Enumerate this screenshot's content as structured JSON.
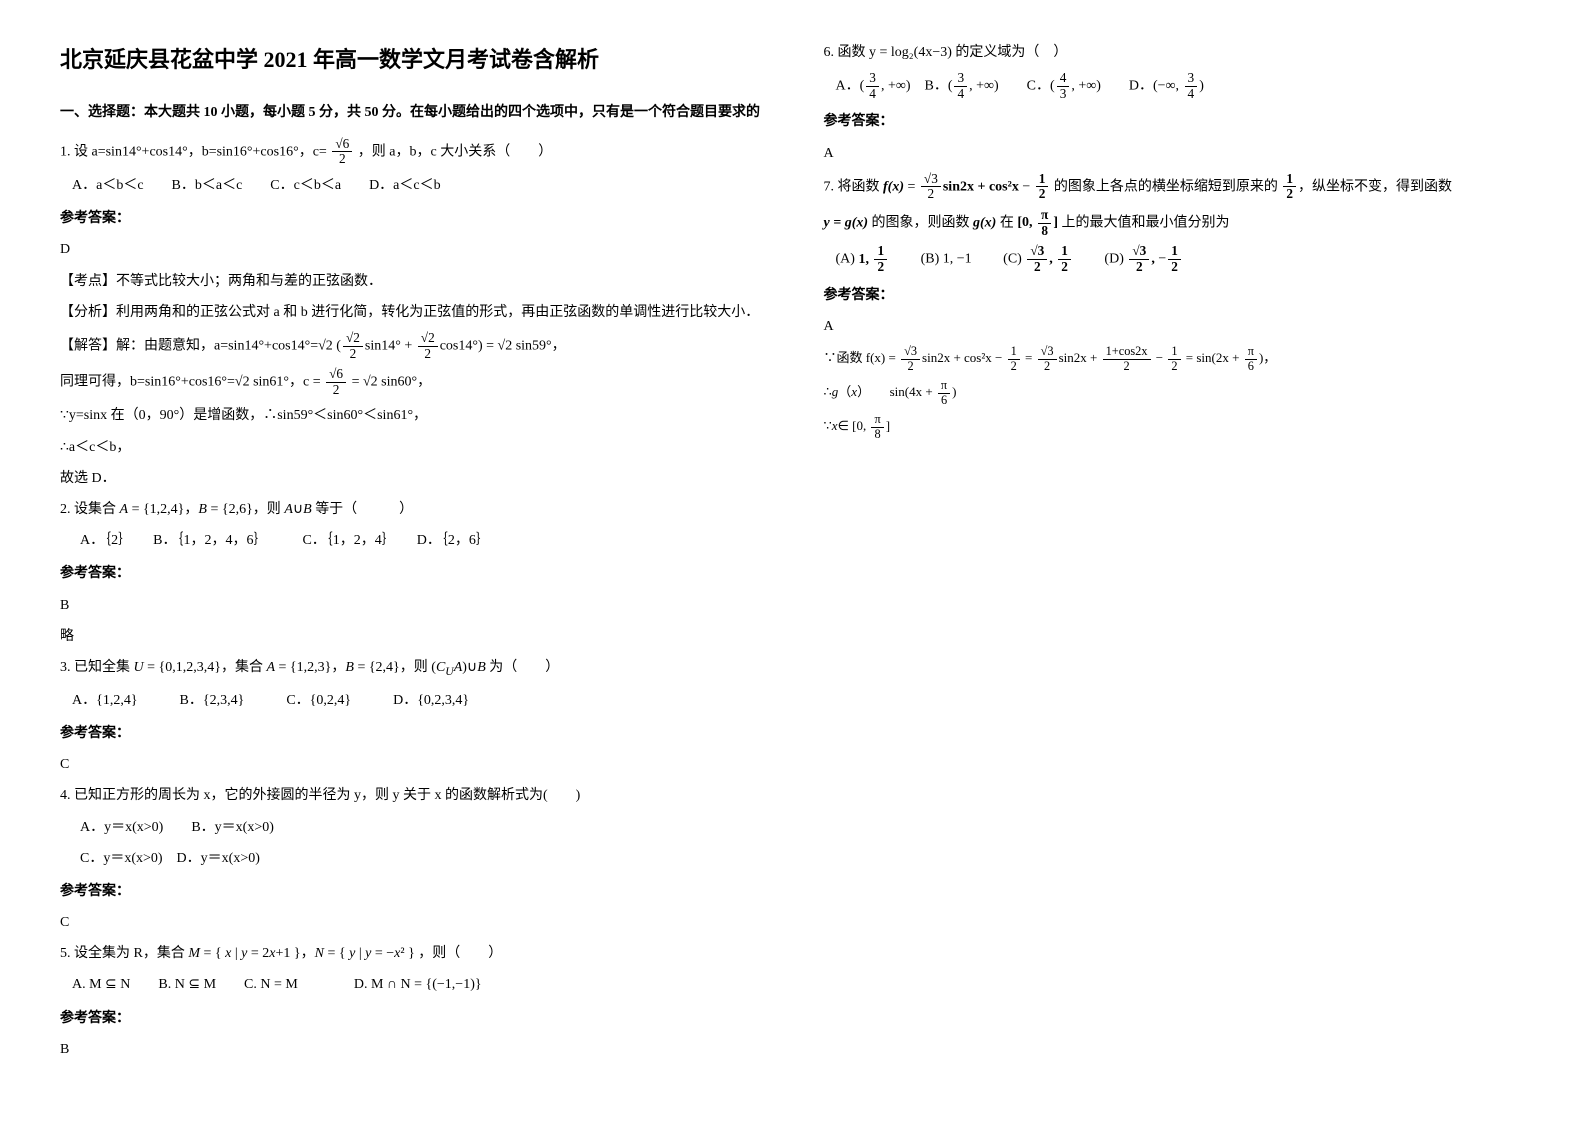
{
  "title": "北京延庆县花盆中学 2021 年高一数学文月考试卷含解析",
  "section1_header": "一、选择题：本大题共 10 小题，每小题 5 分，共 50 分。在每小题给出的四个选项中，只有是一个符合题目要求的",
  "q1": {
    "stem_prefix": "1. 设 a=sin14°+cos14°，b=sin16°+cos16°，c=",
    "stem_suffix": "，则 a，b，c 大小关系（　　）",
    "opts": "A．a＜b＜c　　B．b＜a＜c　　C．c＜b＜a　　D．a＜c＜b",
    "ans_label": "参考答案：",
    "ans": "D",
    "kaodian": "【考点】不等式比较大小；两角和与差的正弦函数．",
    "fenxi": "【分析】利用两角和的正弦公式对 a 和 b 进行化简，转化为正弦值的形式，再由正弦函数的单调性进行比较大小．",
    "jieda_prefix": "【解答】解：由题意知，a=sin14°+cos14°=",
    "jieda_line2_prefix": "同理可得，b=sin16°+cos16°=",
    "jieda_line3": "∵y=sinx 在（0，90°）是增函数，∴sin59°＜sin60°＜sin61°，",
    "jieda_line4": "∴a＜c＜b，",
    "jieda_line5": "故选 D．"
  },
  "q2": {
    "stem": "2. 设集合 A = {1,2,4}，B = {2,6}，则 A∪B 等于（　　　）",
    "opts": "A．｛2｝　　B．｛1，2，4，6｝　　　C．｛1，2，4｝　　D．｛2，6｝",
    "ans_label": "参考答案：",
    "ans": "B",
    "note": "略"
  },
  "q3": {
    "stem": "3. 已知全集 U = {0,1,2,3,4}，集合 A = {1,2,3}，B = {2,4}，则 (C_U A)∪B 为（　　）",
    "opts": "A．{1,2,4}　　　B．{2,3,4}　　　C．{0,2,4}　　　D．{0,2,3,4}",
    "ans_label": "参考答案：",
    "ans": "C"
  },
  "q4": {
    "stem": "4. 已知正方形的周长为 x，它的外接圆的半径为 y，则 y 关于 x 的函数解析式为(　　)",
    "optA": "A．y＝x(x>0)　　B．y＝x(x>0)",
    "optC": "C．y＝x(x>0)　D．y＝x(x>0)",
    "ans_label": "参考答案：",
    "ans": "C"
  },
  "q5": {
    "stem_prefix": "5. 设全集为 R，集合",
    "stem_M": "M = { x | y = 2x+1 }，N = { y | y = −x² }",
    "stem_suffix": "，则（　　）",
    "optA": "A. M ⊆ N",
    "optB": "B. N ⊆ M",
    "optC": "C. N = M",
    "optD": "D. M ∩ N = {(−1,−1)}",
    "ans_label": "参考答案：",
    "ans": "B"
  },
  "q6": {
    "stem": "6. 函数 y = log₂(4x−3) 的定义域为（　）",
    "ans_label": "参考答案：",
    "ans": "A"
  },
  "q7": {
    "ans_label": "参考答案：",
    "ans": "A"
  }
}
